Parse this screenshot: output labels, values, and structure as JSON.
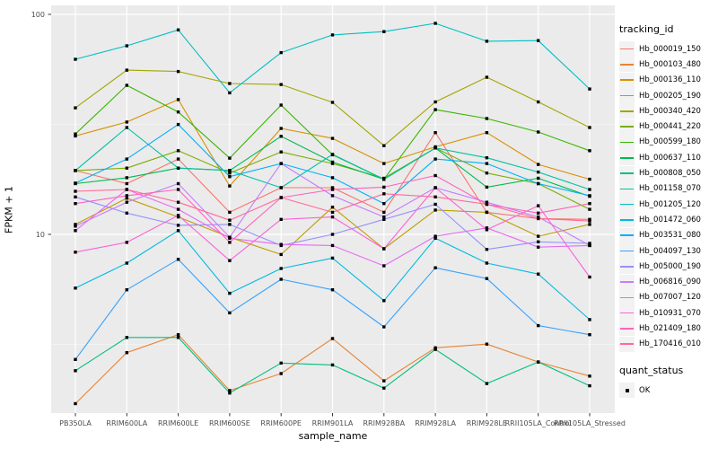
{
  "chart": {
    "y_axis_title": "FPKM + 1",
    "x_axis_title": "sample_name",
    "y_tick_labels": [
      "100",
      "10"
    ]
  },
  "legend": {
    "title": "tracking_id"
  },
  "quant_legend": {
    "title": "quant_status",
    "ok_label": "OK",
    "marker_color": "#000000"
  },
  "style_colors": {
    "panel_bg": "#ebebeb",
    "grid_major": "#ffffff",
    "grid_minor": "#f5f5f5",
    "tick_mark": "#333333",
    "tick_text": "#4d4d4d"
  },
  "chart_data": {
    "type": "line",
    "title": "",
    "xlabel": "sample_name",
    "ylabel": "FPKM + 1",
    "y_scale": "log10",
    "ylim": [
      1.5,
      110
    ],
    "y_major_ticks": [
      10,
      100
    ],
    "y_minor_gridlines": [
      3.162,
      31.62
    ],
    "grid": true,
    "legend_position": "right",
    "point_marker": "small black square (quant_status OK) on every data point",
    "categories": [
      "PB350LA",
      "RRIM600LA",
      "RRIM600LE",
      "RRIM600SE",
      "RRIM600PE",
      "RRIM901LA",
      "RRIM928BA",
      "RRIM928LA",
      "RRIM928LE",
      "RRII105LA_Control",
      "RRII105LA_Stressed"
    ],
    "series": [
      {
        "name": "Hb_000019_150",
        "color": "#F8766D",
        "values": [
          19.5,
          17,
          22,
          12.6,
          16.3,
          16.3,
          12.6,
          29,
          12.6,
          11.8,
          11.7
        ]
      },
      {
        "name": "Hb_000103_480",
        "color": "#EA8331",
        "values": [
          1.7,
          2.9,
          3.5,
          1.95,
          2.33,
          3.36,
          2.16,
          3.05,
          3.17,
          2.63,
          2.27
        ]
      },
      {
        "name": "Hb_000136_110",
        "color": "#D89000",
        "values": [
          28,
          32.4,
          41,
          16.6,
          30.3,
          27.3,
          21,
          25,
          29,
          20.8,
          17.8
        ]
      },
      {
        "name": "Hb_000205_190",
        "color": "#C09B00",
        "values": [
          11.1,
          14.6,
          12,
          9.7,
          8.1,
          13.3,
          8.6,
          12.9,
          12.6,
          9.8,
          11.1
        ]
      },
      {
        "name": "Hb_000340_420",
        "color": "#A3A500",
        "values": [
          37.6,
          55.8,
          55,
          48.5,
          48,
          39.8,
          25.3,
          40,
          51.8,
          40,
          30.6
        ]
      },
      {
        "name": "Hb_000441_220",
        "color": "#7CAE00",
        "values": [
          19.5,
          20,
          24,
          19,
          23.7,
          21,
          18,
          24.7,
          19,
          17,
          13
        ]
      },
      {
        "name": "Hb_000599_180",
        "color": "#39B600",
        "values": [
          28.6,
          47.6,
          36,
          22.2,
          38.7,
          23,
          17.8,
          36.9,
          33.6,
          29.2,
          24
        ]
      },
      {
        "name": "Hb_000637_110",
        "color": "#00BB4E",
        "values": [
          17,
          18.1,
          20,
          19.5,
          27.9,
          21.3,
          17.8,
          24.7,
          16.4,
          18,
          14.9
        ]
      },
      {
        "name": "Hb_000808_050",
        "color": "#00BF7D",
        "values": [
          2.4,
          3.4,
          3.4,
          1.9,
          2.6,
          2.55,
          2.0,
          3.0,
          2.1,
          2.63,
          2.05
        ]
      },
      {
        "name": "Hb_001158_070",
        "color": "#00C1A3",
        "values": [
          19.5,
          30.6,
          20,
          19.5,
          16.3,
          23.1,
          17.8,
          24.7,
          22.3,
          19.2,
          16
        ]
      },
      {
        "name": "Hb_001205_120",
        "color": "#00BFC4",
        "values": [
          62.5,
          72,
          85,
          44,
          67,
          80.6,
          83.5,
          91,
          75.5,
          76,
          45.8
        ]
      },
      {
        "name": "Hb_001472_060",
        "color": "#00BAE0",
        "values": [
          5.7,
          7.4,
          10.4,
          5.4,
          7.0,
          7.8,
          5.0,
          9.6,
          7.4,
          6.6,
          4.1
        ]
      },
      {
        "name": "Hb_003531_080",
        "color": "#00B0F6",
        "values": [
          17.1,
          22,
          31.6,
          18.3,
          21,
          18.1,
          13.8,
          22,
          21,
          17,
          15
        ]
      },
      {
        "name": "Hb_004097_130",
        "color": "#35A2FF",
        "values": [
          2.7,
          5.6,
          7.7,
          4.4,
          6.25,
          5.6,
          3.8,
          7.05,
          6.3,
          3.85,
          3.5
        ]
      },
      {
        "name": "Hb_005000_190",
        "color": "#9590FF",
        "values": [
          14.8,
          12.5,
          11,
          11.1,
          8.9,
          10,
          11.7,
          13.7,
          8.55,
          9.25,
          9.1
        ]
      },
      {
        "name": "Hb_006816_090",
        "color": "#C77CFF",
        "values": [
          10.9,
          14,
          17,
          9.7,
          21,
          15,
          12,
          16.3,
          14,
          12,
          8.9
        ]
      },
      {
        "name": "Hb_007007_120",
        "color": "#E76BF3",
        "values": [
          10.4,
          16,
          13,
          9.6,
          9,
          8.9,
          7.2,
          9.8,
          10.7,
          8.75,
          8.9
        ]
      },
      {
        "name": "Hb_010931_070",
        "color": "#FA62DB",
        "values": [
          8.3,
          9.2,
          12.2,
          7.6,
          11.7,
          12,
          8.6,
          16.3,
          10.5,
          13.5,
          6.4
        ]
      },
      {
        "name": "Hb_021409_180",
        "color": "#FF62BC",
        "values": [
          13.8,
          15,
          16,
          9.2,
          14.7,
          16,
          16.4,
          18.5,
          13.7,
          12.5,
          13.8
        ]
      },
      {
        "name": "Hb_170416_010",
        "color": "#FF6A98",
        "values": [
          15.7,
          16,
          14,
          11.6,
          14.7,
          12.6,
          15.3,
          14.8,
          13.7,
          11.8,
          11.5
        ]
      }
    ]
  }
}
